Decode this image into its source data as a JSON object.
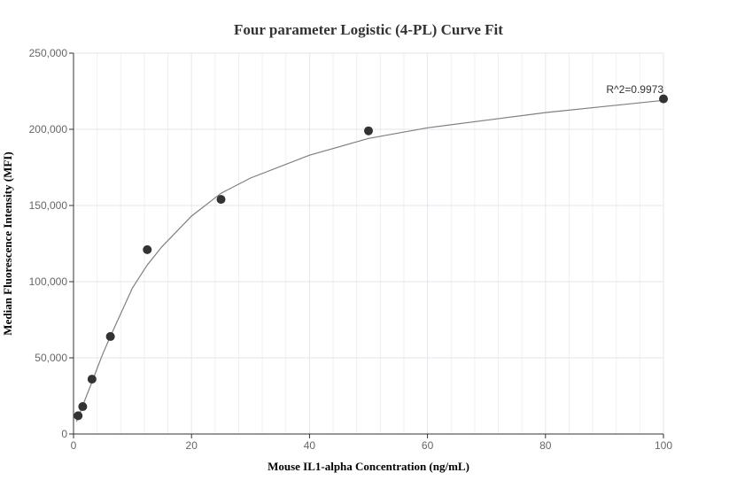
{
  "chart_data": {
    "type": "scatter",
    "title": "Four parameter Logistic (4-PL) Curve Fit",
    "xlabel": "Mouse IL1-alpha Concentration (ng/mL)",
    "ylabel": "Median Fluorescence Intensity (MFI)",
    "xlim": [
      0,
      100
    ],
    "ylim": [
      0,
      250000
    ],
    "x_ticks": [
      "0",
      "20",
      "40",
      "60",
      "80",
      "100"
    ],
    "y_ticks": [
      "0",
      "50,000",
      "100,000",
      "150,000",
      "200,000",
      "250,000"
    ],
    "grid": true,
    "points": {
      "x": [
        0.78,
        1.56,
        3.13,
        6.25,
        12.5,
        25,
        50,
        100
      ],
      "y": [
        12000,
        18000,
        36000,
        64000,
        121000,
        154000,
        199000,
        220000
      ]
    },
    "fit_curve": {
      "x": [
        0.5,
        1,
        1.56,
        2,
        3.13,
        4,
        5,
        6.25,
        8,
        10,
        12.5,
        15,
        20,
        25,
        30,
        40,
        50,
        60,
        70,
        80,
        90,
        100
      ],
      "y": [
        8000,
        13000,
        18500,
        23000,
        34000,
        43000,
        53000,
        64000,
        79000,
        96000,
        111000,
        123000,
        143000,
        158000,
        168000,
        183000,
        194000,
        201000,
        206000,
        211000,
        215000,
        219000
      ]
    },
    "annotation": "R^2=0.9973",
    "colors": {
      "points": "#333333",
      "curve": "#7f7f7f",
      "grid": "#e6e6ee",
      "axis": "#333333"
    }
  }
}
